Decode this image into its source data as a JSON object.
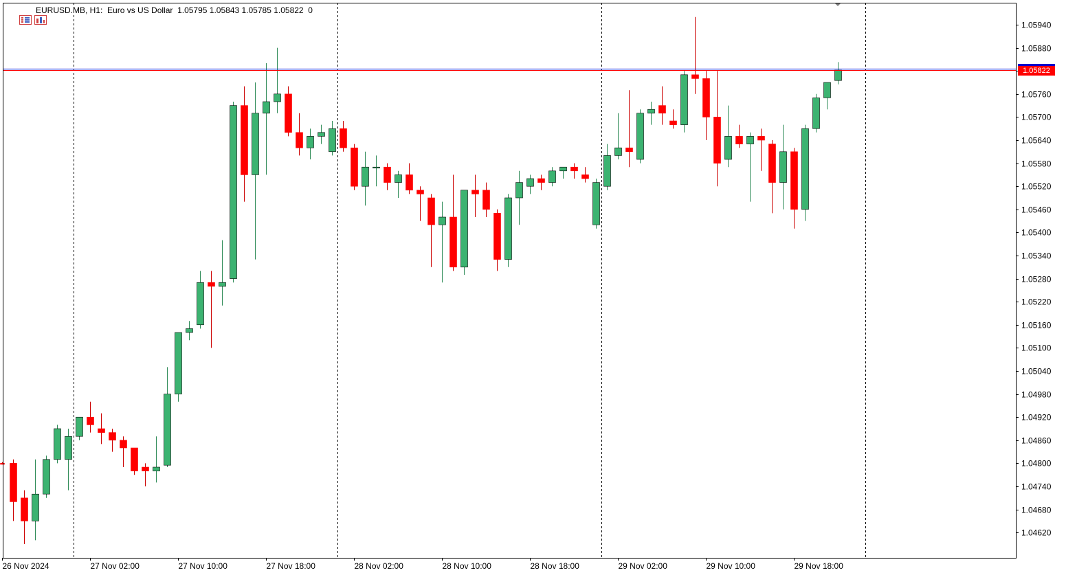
{
  "header": {
    "symbol": "EURUSD.MB, H1:",
    "description": "Euro vs US Dollar",
    "ohlc": "1.05795 1.05843 1.05785 1.05822",
    "extra": "0"
  },
  "icons": [
    "chart-list-icon",
    "chart-bars-icon"
  ],
  "colors": {
    "bull": "#3cb371",
    "bear": "#ff0000",
    "bid_line": "#ff0000",
    "ask_line": "#0000cc",
    "axis": "#000000",
    "separator": "#000000"
  },
  "chart_data": {
    "type": "candlestick",
    "symbol": "EURUSD.MB",
    "timeframe": "H1",
    "ylim": [
      1.0458,
      1.06
    ],
    "y_ticks": [
      "1.05940",
      "1.05880",
      "1.05820",
      "1.05760",
      "1.05700",
      "1.05640",
      "1.05580",
      "1.05520",
      "1.05460",
      "1.05400",
      "1.05340",
      "1.05280",
      "1.05220",
      "1.05160",
      "1.05100",
      "1.05040",
      "1.04980",
      "1.04920",
      "1.04860",
      "1.04800",
      "1.04740",
      "1.04680",
      "1.04620"
    ],
    "x_labels": [
      "26 Nov 2024",
      "27 Nov 02:00",
      "27 Nov 10:00",
      "27 Nov 18:00",
      "28 Nov 02:00",
      "28 Nov 10:00",
      "28 Nov 18:00",
      "29 Nov 02:00",
      "29 Nov 10:00",
      "29 Nov 18:00"
    ],
    "current_price": "1.05822",
    "ask_price": 1.05826,
    "day_separators": [
      6,
      30,
      54,
      78
    ],
    "grid": false,
    "candles": [
      {
        "o": 1.048,
        "h": 1.04803,
        "l": 1.04797,
        "c": 1.04798
      },
      {
        "o": 1.048,
        "h": 1.0481,
        "l": 1.0465,
        "c": 1.047
      },
      {
        "o": 1.0471,
        "h": 1.0473,
        "l": 1.0459,
        "c": 1.0465
      },
      {
        "o": 1.0465,
        "h": 1.0481,
        "l": 1.046,
        "c": 1.0472
      },
      {
        "o": 1.0472,
        "h": 1.0482,
        "l": 1.0471,
        "c": 1.0481
      },
      {
        "o": 1.0481,
        "h": 1.049,
        "l": 1.048,
        "c": 1.0489
      },
      {
        "o": 1.0481,
        "h": 1.0489,
        "l": 1.0473,
        "c": 1.0487
      },
      {
        "o": 1.0487,
        "h": 1.0492,
        "l": 1.0486,
        "c": 1.0492
      },
      {
        "o": 1.0492,
        "h": 1.0496,
        "l": 1.0488,
        "c": 1.049
      },
      {
        "o": 1.0489,
        "h": 1.0493,
        "l": 1.0485,
        "c": 1.0488
      },
      {
        "o": 1.0488,
        "h": 1.0489,
        "l": 1.0483,
        "c": 1.0486
      },
      {
        "o": 1.0486,
        "h": 1.0487,
        "l": 1.0479,
        "c": 1.0484
      },
      {
        "o": 1.0484,
        "h": 1.0484,
        "l": 1.0477,
        "c": 1.0478
      },
      {
        "o": 1.0479,
        "h": 1.048,
        "l": 1.0474,
        "c": 1.0478
      },
      {
        "o": 1.0478,
        "h": 1.0487,
        "l": 1.0475,
        "c": 1.0479
      },
      {
        "o": 1.04795,
        "h": 1.0505,
        "l": 1.0479,
        "c": 1.0498
      },
      {
        "o": 1.0498,
        "h": 1.0514,
        "l": 1.0496,
        "c": 1.0514
      },
      {
        "o": 1.0514,
        "h": 1.0517,
        "l": 1.0512,
        "c": 1.0515
      },
      {
        "o": 1.0516,
        "h": 1.053,
        "l": 1.0515,
        "c": 1.0527
      },
      {
        "o": 1.0527,
        "h": 1.053,
        "l": 1.051,
        "c": 1.0526
      },
      {
        "o": 1.0526,
        "h": 1.0538,
        "l": 1.0521,
        "c": 1.0527
      },
      {
        "o": 1.0528,
        "h": 1.0574,
        "l": 1.0527,
        "c": 1.0573
      },
      {
        "o": 1.0573,
        "h": 1.0578,
        "l": 1.0548,
        "c": 1.0555
      },
      {
        "o": 1.0555,
        "h": 1.0579,
        "l": 1.0533,
        "c": 1.0571
      },
      {
        "o": 1.0571,
        "h": 1.0584,
        "l": 1.0555,
        "c": 1.0574
      },
      {
        "o": 1.0574,
        "h": 1.0588,
        "l": 1.0571,
        "c": 1.0576
      },
      {
        "o": 1.0576,
        "h": 1.0578,
        "l": 1.0565,
        "c": 1.0566
      },
      {
        "o": 1.0566,
        "h": 1.0571,
        "l": 1.056,
        "c": 1.0562
      },
      {
        "o": 1.0562,
        "h": 1.0567,
        "l": 1.0559,
        "c": 1.0565
      },
      {
        "o": 1.0565,
        "h": 1.0568,
        "l": 1.0563,
        "c": 1.0566
      },
      {
        "o": 1.0561,
        "h": 1.0569,
        "l": 1.056,
        "c": 1.0567
      },
      {
        "o": 1.0567,
        "h": 1.0569,
        "l": 1.0561,
        "c": 1.0562
      },
      {
        "o": 1.0562,
        "h": 1.0563,
        "l": 1.0551,
        "c": 1.0552
      },
      {
        "o": 1.0552,
        "h": 1.0561,
        "l": 1.0547,
        "c": 1.0557
      },
      {
        "o": 1.0557,
        "h": 1.056,
        "l": 1.0552,
        "c": 1.0557
      },
      {
        "o": 1.0557,
        "h": 1.0558,
        "l": 1.0551,
        "c": 1.0553
      },
      {
        "o": 1.0553,
        "h": 1.0556,
        "l": 1.0549,
        "c": 1.0555
      },
      {
        "o": 1.0555,
        "h": 1.0558,
        "l": 1.055,
        "c": 1.0551
      },
      {
        "o": 1.0551,
        "h": 1.0552,
        "l": 1.0543,
        "c": 1.055
      },
      {
        "o": 1.0549,
        "h": 1.055,
        "l": 1.0531,
        "c": 1.0542
      },
      {
        "o": 1.0542,
        "h": 1.0548,
        "l": 1.0527,
        "c": 1.0544
      },
      {
        "o": 1.0544,
        "h": 1.0555,
        "l": 1.053,
        "c": 1.0531
      },
      {
        "o": 1.0531,
        "h": 1.0551,
        "l": 1.0529,
        "c": 1.0551
      },
      {
        "o": 1.0551,
        "h": 1.0555,
        "l": 1.0544,
        "c": 1.055
      },
      {
        "o": 1.0551,
        "h": 1.0553,
        "l": 1.0544,
        "c": 1.0546
      },
      {
        "o": 1.0545,
        "h": 1.0546,
        "l": 1.053,
        "c": 1.0533
      },
      {
        "o": 1.0533,
        "h": 1.055,
        "l": 1.0531,
        "c": 1.0549
      },
      {
        "o": 1.0549,
        "h": 1.0556,
        "l": 1.0542,
        "c": 1.0553
      },
      {
        "o": 1.0552,
        "h": 1.0555,
        "l": 1.055,
        "c": 1.0554
      },
      {
        "o": 1.0554,
        "h": 1.0555,
        "l": 1.0551,
        "c": 1.0553
      },
      {
        "o": 1.0553,
        "h": 1.0557,
        "l": 1.0552,
        "c": 1.0556
      },
      {
        "o": 1.0556,
        "h": 1.0557,
        "l": 1.0554,
        "c": 1.0557
      },
      {
        "o": 1.0557,
        "h": 1.0558,
        "l": 1.0554,
        "c": 1.0556
      },
      {
        "o": 1.0555,
        "h": 1.0557,
        "l": 1.0553,
        "c": 1.0554
      },
      {
        "o": 1.0542,
        "h": 1.0554,
        "l": 1.0541,
        "c": 1.0553
      },
      {
        "o": 1.0552,
        "h": 1.0563,
        "l": 1.0551,
        "c": 1.056
      },
      {
        "o": 1.056,
        "h": 1.0571,
        "l": 1.0559,
        "c": 1.0562
      },
      {
        "o": 1.0562,
        "h": 1.0577,
        "l": 1.0557,
        "c": 1.0561
      },
      {
        "o": 1.0559,
        "h": 1.0572,
        "l": 1.0558,
        "c": 1.0571
      },
      {
        "o": 1.0571,
        "h": 1.0574,
        "l": 1.0568,
        "c": 1.0572
      },
      {
        "o": 1.0573,
        "h": 1.0578,
        "l": 1.0568,
        "c": 1.0571
      },
      {
        "o": 1.0569,
        "h": 1.0572,
        "l": 1.0567,
        "c": 1.0568
      },
      {
        "o": 1.0568,
        "h": 1.0582,
        "l": 1.0566,
        "c": 1.0581
      },
      {
        "o": 1.0581,
        "h": 1.0596,
        "l": 1.0576,
        "c": 1.058
      },
      {
        "o": 1.058,
        "h": 1.0582,
        "l": 1.0564,
        "c": 1.057
      },
      {
        "o": 1.057,
        "h": 1.0582,
        "l": 1.0552,
        "c": 1.0558
      },
      {
        "o": 1.0559,
        "h": 1.0573,
        "l": 1.0557,
        "c": 1.0565
      },
      {
        "o": 1.0565,
        "h": 1.0568,
        "l": 1.0562,
        "c": 1.0563
      },
      {
        "o": 1.0563,
        "h": 1.0566,
        "l": 1.0548,
        "c": 1.0565
      },
      {
        "o": 1.0565,
        "h": 1.0567,
        "l": 1.0556,
        "c": 1.0564
      },
      {
        "o": 1.0563,
        "h": 1.0564,
        "l": 1.0545,
        "c": 1.0553
      },
      {
        "o": 1.0553,
        "h": 1.0568,
        "l": 1.0546,
        "c": 1.0561
      },
      {
        "o": 1.0561,
        "h": 1.0562,
        "l": 1.0541,
        "c": 1.0546
      },
      {
        "o": 1.0546,
        "h": 1.0568,
        "l": 1.0543,
        "c": 1.0567
      },
      {
        "o": 1.0567,
        "h": 1.0576,
        "l": 1.0566,
        "c": 1.0575
      },
      {
        "o": 1.0575,
        "h": 1.0579,
        "l": 1.0572,
        "c": 1.0579
      },
      {
        "o": 1.05795,
        "h": 1.05843,
        "l": 1.05785,
        "c": 1.05822
      }
    ]
  }
}
